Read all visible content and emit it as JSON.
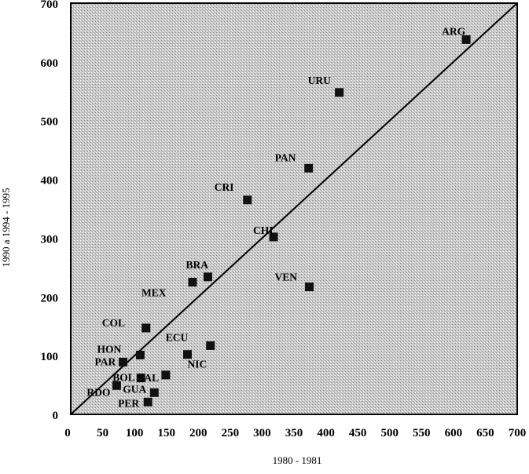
{
  "chart_data": {
    "type": "scatter",
    "title": "",
    "xlabel": "1980 - 1981",
    "ylabel": "1990 a 1994 - 1995",
    "xlim": [
      0,
      700
    ],
    "ylim": [
      0,
      700
    ],
    "x_ticks": [
      0,
      50,
      100,
      150,
      200,
      250,
      300,
      350,
      400,
      450,
      500,
      550,
      600,
      650,
      700
    ],
    "y_ticks": [
      0,
      100,
      200,
      300,
      400,
      500,
      600,
      700
    ],
    "reference_line": {
      "type": "identity",
      "from": [
        0,
        0
      ],
      "to": [
        700,
        700
      ]
    },
    "grid": false,
    "points": [
      {
        "label": "ARG",
        "x": 620,
        "y": 638
      },
      {
        "label": "URU",
        "x": 421,
        "y": 548
      },
      {
        "label": "PAN",
        "x": 373,
        "y": 419
      },
      {
        "label": "CRI",
        "x": 277,
        "y": 365
      },
      {
        "label": "CHI",
        "x": 318,
        "y": 302
      },
      {
        "label": "VEN",
        "x": 374,
        "y": 217
      },
      {
        "label": "BRA",
        "x": 215,
        "y": 234
      },
      {
        "label": "MEX",
        "x": 191,
        "y": 225
      },
      {
        "label": "COL",
        "x": 118,
        "y": 147
      },
      {
        "label": "ECU",
        "x": 219,
        "y": 117
      },
      {
        "label": "NIC",
        "x": 183,
        "y": 102
      },
      {
        "label": "HON",
        "x": 109,
        "y": 101
      },
      {
        "label": "PAR",
        "x": 82,
        "y": 89
      },
      {
        "label": "BOL",
        "x": 110,
        "y": 62
      },
      {
        "label": "SAL",
        "x": 149,
        "y": 67
      },
      {
        "label": "GUA",
        "x": 131,
        "y": 37
      },
      {
        "label": "RDO",
        "x": 72,
        "y": 49
      },
      {
        "label": "PER",
        "x": 121,
        "y": 21
      }
    ]
  }
}
